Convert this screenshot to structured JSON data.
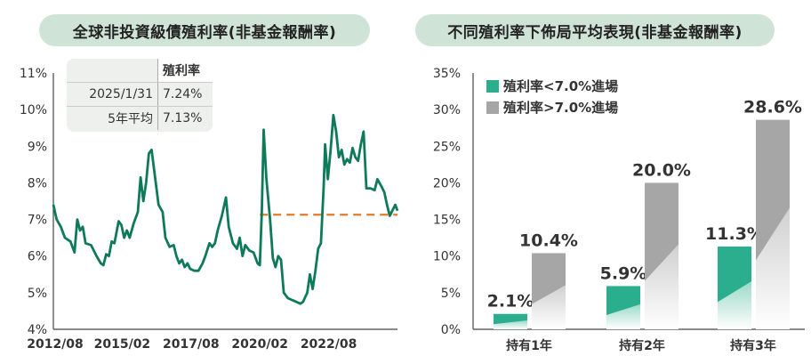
{
  "left_chart": {
    "title": "全球非投資級債殖利率(非基金報酬率)",
    "table": {
      "header": "殖利率",
      "rows": [
        {
          "label": "2025/1/31",
          "value": "7.24%"
        },
        {
          "label": "5年平均",
          "value": "7.13%"
        }
      ]
    }
  },
  "right_chart": {
    "title": "不同殖利率下佈局平均表現(非基金報酬率)"
  },
  "colors": {
    "green": "#0e7a5a",
    "teal": "#2bae8d",
    "gray": "#a6a6a6",
    "orange": "#e07b2a",
    "pill": "#cfe3d6"
  },
  "chart_data": [
    {
      "type": "line",
      "ylim": [
        4,
        11
      ],
      "yticks": [
        "4%",
        "5%",
        "6%",
        "7%",
        "8%",
        "9%",
        "10%",
        "11%"
      ],
      "xticks": [
        {
          "label": "2012/08",
          "x": 2012.58
        },
        {
          "label": "2015/02",
          "x": 2015.08
        },
        {
          "label": "2017/08",
          "x": 2017.58
        },
        {
          "label": "2020/02",
          "x": 2020.08
        },
        {
          "label": "2022/08",
          "x": 2022.58
        }
      ],
      "xlim": [
        2012.58,
        2025.08
      ],
      "series": [
        {
          "points": [
            [
              2012.58,
              7.4
            ],
            [
              2012.7,
              7.0
            ],
            [
              2012.85,
              6.8
            ],
            [
              2013.0,
              6.5
            ],
            [
              2013.2,
              6.4
            ],
            [
              2013.35,
              6.1
            ],
            [
              2013.45,
              7.0
            ],
            [
              2013.55,
              6.7
            ],
            [
              2013.65,
              6.8
            ],
            [
              2013.75,
              6.35
            ],
            [
              2013.95,
              6.3
            ],
            [
              2014.15,
              6.0
            ],
            [
              2014.3,
              5.8
            ],
            [
              2014.4,
              5.75
            ],
            [
              2014.5,
              6.05
            ],
            [
              2014.6,
              6.0
            ],
            [
              2014.7,
              6.4
            ],
            [
              2014.8,
              6.35
            ],
            [
              2014.95,
              6.95
            ],
            [
              2015.05,
              6.85
            ],
            [
              2015.15,
              6.5
            ],
            [
              2015.25,
              6.7
            ],
            [
              2015.35,
              6.5
            ],
            [
              2015.5,
              6.9
            ],
            [
              2015.65,
              7.2
            ],
            [
              2015.75,
              8.15
            ],
            [
              2015.85,
              7.5
            ],
            [
              2015.95,
              8.0
            ],
            [
              2016.05,
              8.8
            ],
            [
              2016.15,
              8.9
            ],
            [
              2016.25,
              8.3
            ],
            [
              2016.4,
              7.4
            ],
            [
              2016.55,
              7.2
            ],
            [
              2016.65,
              6.5
            ],
            [
              2016.8,
              6.25
            ],
            [
              2016.95,
              6.3
            ],
            [
              2017.05,
              6.0
            ],
            [
              2017.15,
              5.8
            ],
            [
              2017.25,
              5.9
            ],
            [
              2017.35,
              5.7
            ],
            [
              2017.45,
              5.8
            ],
            [
              2017.55,
              5.65
            ],
            [
              2017.7,
              5.6
            ],
            [
              2017.85,
              5.6
            ],
            [
              2018.0,
              5.8
            ],
            [
              2018.1,
              6.0
            ],
            [
              2018.25,
              6.35
            ],
            [
              2018.35,
              6.25
            ],
            [
              2018.45,
              6.35
            ],
            [
              2018.55,
              6.7
            ],
            [
              2018.7,
              7.1
            ],
            [
              2018.85,
              7.6
            ],
            [
              2018.95,
              6.8
            ],
            [
              2019.1,
              6.35
            ],
            [
              2019.25,
              6.2
            ],
            [
              2019.35,
              6.5
            ],
            [
              2019.45,
              6.0
            ],
            [
              2019.55,
              6.3
            ],
            [
              2019.7,
              6.15
            ],
            [
              2019.85,
              6.1
            ],
            [
              2020.0,
              5.8
            ],
            [
              2020.08,
              5.75
            ],
            [
              2020.15,
              7.2
            ],
            [
              2020.22,
              9.45
            ],
            [
              2020.32,
              8.1
            ],
            [
              2020.45,
              7.0
            ],
            [
              2020.55,
              5.95
            ],
            [
              2020.65,
              5.7
            ],
            [
              2020.75,
              6.0
            ],
            [
              2020.85,
              5.9
            ],
            [
              2020.95,
              5.0
            ],
            [
              2021.1,
              4.85
            ],
            [
              2021.25,
              4.8
            ],
            [
              2021.4,
              4.75
            ],
            [
              2021.55,
              4.7
            ],
            [
              2021.65,
              4.75
            ],
            [
              2021.8,
              5.0
            ],
            [
              2021.9,
              5.5
            ],
            [
              2022.0,
              5.1
            ],
            [
              2022.1,
              5.6
            ],
            [
              2022.2,
              6.2
            ],
            [
              2022.3,
              6.35
            ],
            [
              2022.4,
              7.9
            ],
            [
              2022.45,
              9.05
            ],
            [
              2022.55,
              8.1
            ],
            [
              2022.65,
              8.9
            ],
            [
              2022.75,
              9.85
            ],
            [
              2022.85,
              9.4
            ],
            [
              2022.95,
              8.7
            ],
            [
              2023.05,
              8.9
            ],
            [
              2023.15,
              8.5
            ],
            [
              2023.25,
              8.65
            ],
            [
              2023.35,
              8.55
            ],
            [
              2023.45,
              8.95
            ],
            [
              2023.55,
              8.7
            ],
            [
              2023.65,
              8.6
            ],
            [
              2023.75,
              9.05
            ],
            [
              2023.85,
              9.4
            ],
            [
              2023.95,
              7.85
            ],
            [
              2024.1,
              7.85
            ],
            [
              2024.25,
              7.8
            ],
            [
              2024.35,
              8.1
            ],
            [
              2024.5,
              7.9
            ],
            [
              2024.6,
              7.75
            ],
            [
              2024.7,
              7.4
            ],
            [
              2024.8,
              7.1
            ],
            [
              2024.9,
              7.25
            ],
            [
              2025.0,
              7.4
            ],
            [
              2025.08,
              7.24
            ]
          ]
        }
      ],
      "reference_line": {
        "y": 7.13,
        "x_start": 2020.08,
        "x_end": 2025.08
      }
    },
    {
      "type": "bar",
      "ylim": [
        0,
        35
      ],
      "yticks": [
        "0%",
        "5%",
        "10%",
        "15%",
        "20%",
        "25%",
        "30%",
        "35%"
      ],
      "categories": [
        "持有1年",
        "持有2年",
        "持有3年"
      ],
      "series": [
        {
          "name": "殖利率<7.0%進場",
          "values": [
            2.1,
            5.9,
            11.3
          ],
          "labels": [
            "2.1%",
            "5.9%",
            "11.3%"
          ]
        },
        {
          "name": "殖利率>7.0%進場",
          "values": [
            10.4,
            20.0,
            28.6
          ],
          "labels": [
            "10.4%",
            "20.0%",
            "28.6%"
          ]
        }
      ],
      "legend": "top-left"
    }
  ]
}
